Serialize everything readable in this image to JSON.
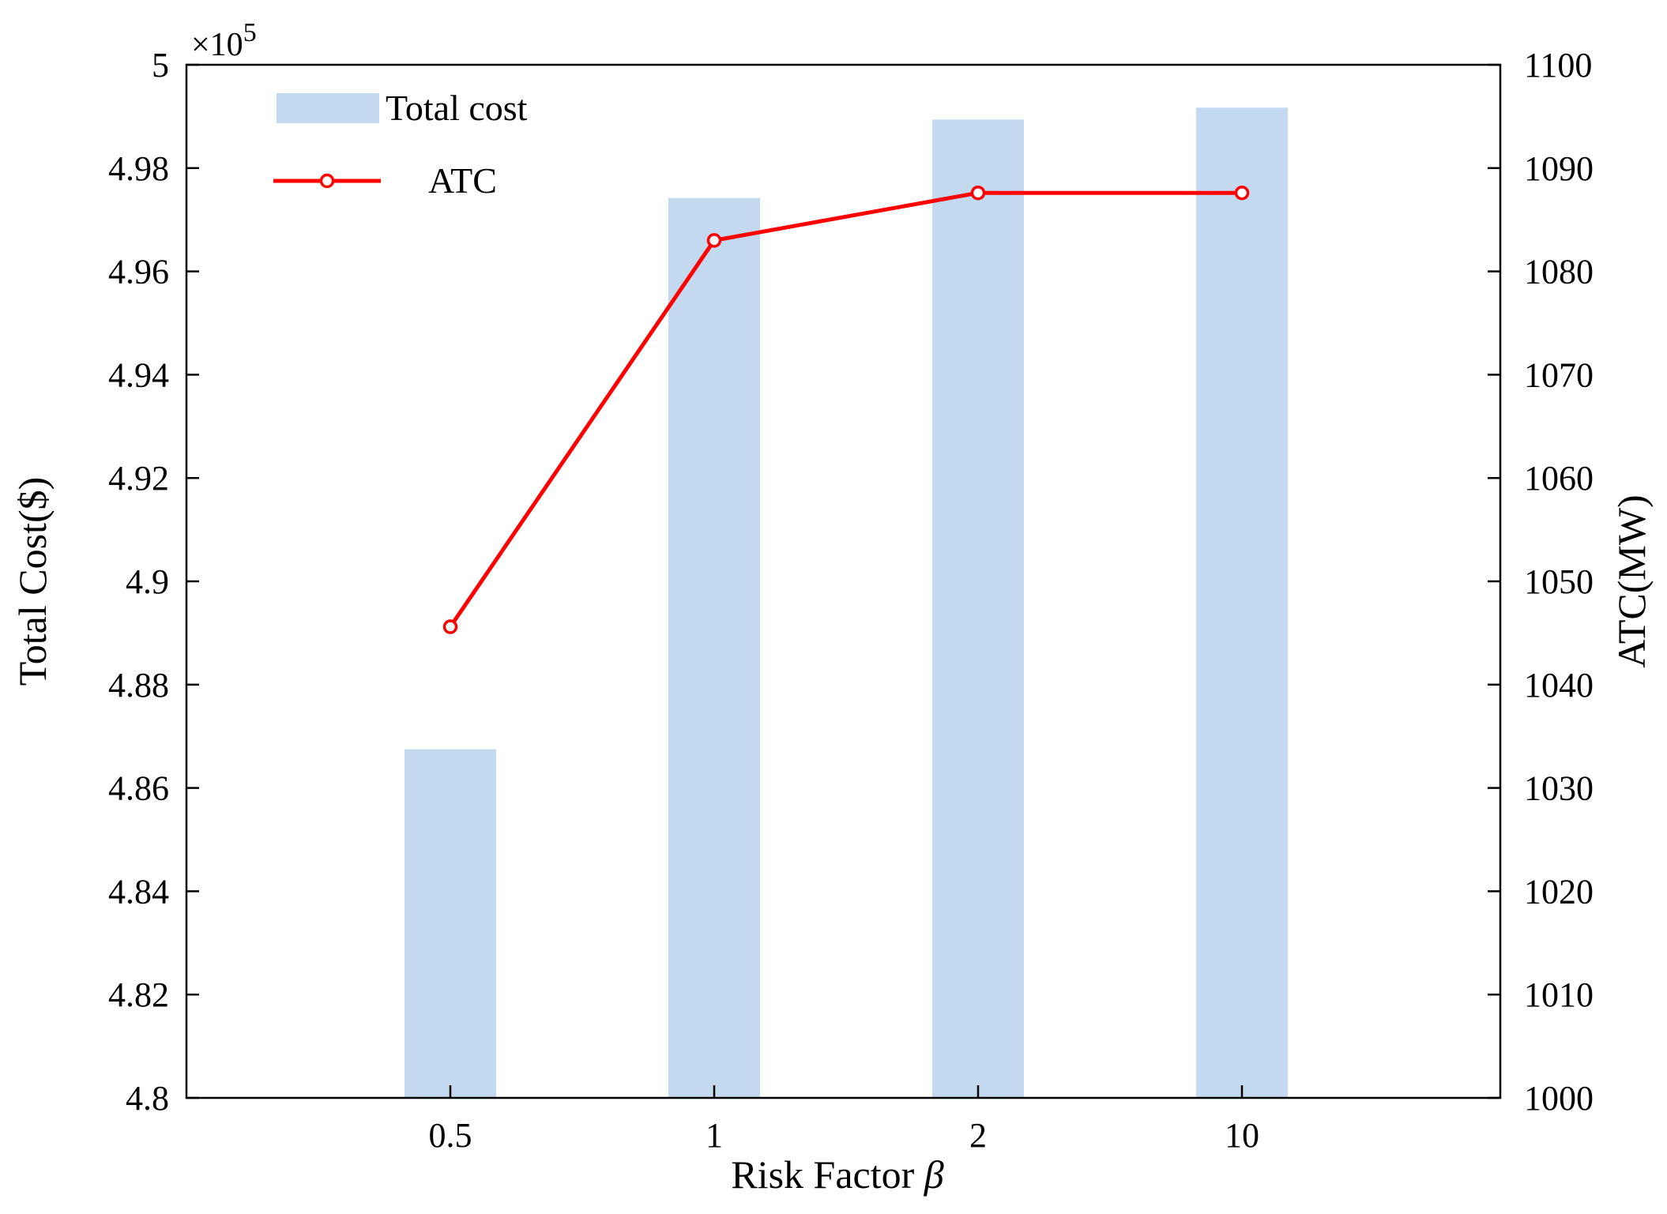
{
  "chart_data": {
    "type": "bar+line",
    "categories": [
      "0.5",
      "1",
      "2",
      "10"
    ],
    "xlabel_main": "Risk Factor ",
    "xlabel_symbol": "β",
    "ylabel_left": "Total Cost($)",
    "ylabel_right": "ATC(MW)",
    "y_left_multiplier_prefix": "×10",
    "y_left_multiplier_exp": "5",
    "ylim_left": [
      4.8,
      5.0
    ],
    "ylim_right": [
      1000,
      1100
    ],
    "y_left_ticks": [
      "4.8",
      "4.82",
      "4.84",
      "4.86",
      "4.88",
      "4.9",
      "4.92",
      "4.94",
      "4.96",
      "4.98",
      "5"
    ],
    "y_right_ticks": [
      "1000",
      "1010",
      "1020",
      "1030",
      "1040",
      "1050",
      "1060",
      "1070",
      "1080",
      "1090",
      "1100"
    ],
    "series": [
      {
        "name": "Total cost",
        "type": "bar",
        "axis": "left",
        "color": "#c3d9f0",
        "values": [
          4.8675,
          4.9742,
          4.9894,
          4.9917
        ]
      },
      {
        "name": "ATC",
        "type": "line",
        "axis": "right",
        "color": "#ff0000",
        "marker": "open-circle",
        "values": [
          1045.6,
          1083.0,
          1087.6,
          1087.6
        ]
      }
    ],
    "legend_position": "top-left",
    "grid": false
  }
}
